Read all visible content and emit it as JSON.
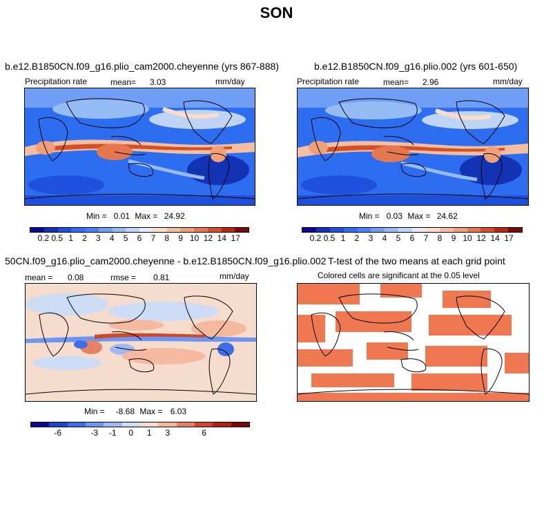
{
  "title": "SON",
  "panels": [
    {
      "title": "b.e12.B1850CN.f09_g16.plio_cam2000.cheyenne (yrs 867-888)",
      "left_label": "Precipitation rate",
      "stat_label": "mean=",
      "stat_value": "3.03",
      "units": "mm/day",
      "min_label": "Min =",
      "min_value": "0.01",
      "max_label": "Max =",
      "max_value": "24.92",
      "colorbar_ticks": [
        "0.2",
        "0.5",
        "1",
        "2",
        "3",
        "4",
        "5",
        "6",
        "7",
        "8",
        "9",
        "10",
        "12",
        "14",
        "17"
      ]
    },
    {
      "title": "b.e12.B1850CN.f09_g16.plio.002 (yrs 601-650)",
      "left_label": "Precipitation rate",
      "stat_label": "mean=",
      "stat_value": "2.96",
      "units": "mm/day",
      "min_label": "Min =",
      "min_value": "0.03",
      "max_label": "Max =",
      "max_value": "24.62",
      "colorbar_ticks": [
        "0.2",
        "0.5",
        "1",
        "2",
        "3",
        "4",
        "5",
        "6",
        "7",
        "8",
        "9",
        "10",
        "12",
        "14",
        "17"
      ]
    },
    {
      "title": "50CN.f09_g16.plio_cam2000.cheyenne - b.e12.B1850CN.f09_g16.plio.002",
      "mean_label": "mean =",
      "mean_value": "0.08",
      "rmse_label": "rmse =",
      "rmse_value": "0.81",
      "units": "mm/day",
      "min_label": "Min =",
      "min_value": "-8.68",
      "max_label": "Max =",
      "max_value": "6.03",
      "colorbar_ticks": [
        "-6",
        "-3",
        "-1",
        "0",
        "1",
        "3",
        "6"
      ]
    },
    {
      "title": "T-test of the two means at each grid point",
      "subtitle": "Colored cells are significant at the 0.05 level"
    }
  ],
  "colors": {
    "precip_scale": [
      "#0a0a8c",
      "#1432b4",
      "#1e50dc",
      "#2d6ef0",
      "#4682f5",
      "#6e9ef5",
      "#96bcf5",
      "#bed4f5",
      "#e6ecf5",
      "#fadcc8",
      "#f5bea0",
      "#f0a078",
      "#e67850",
      "#d25028",
      "#b42814",
      "#780a0a"
    ],
    "diff_scale": [
      "#0a0a8c",
      "#1e46c8",
      "#3c6ee6",
      "#6e96f0",
      "#a0b9f5",
      "#cddcf5",
      "#f5dccd",
      "#f5b9a0",
      "#e68264",
      "#d24628",
      "#b41e14",
      "#780a0a"
    ],
    "ttest_fill": "#f07850"
  }
}
